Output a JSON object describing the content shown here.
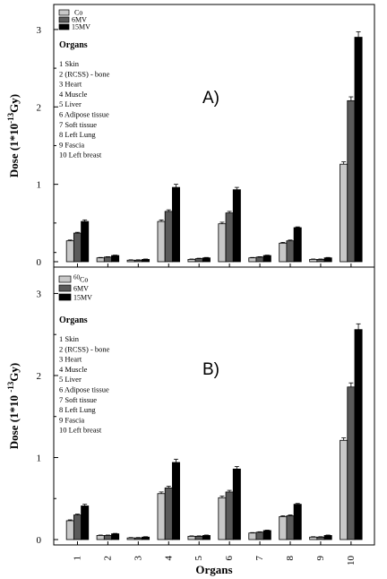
{
  "colors": {
    "series": [
      "#c8c8c8",
      "#5a5a5a",
      "#000000"
    ],
    "axis": "#000000",
    "background": "#ffffff"
  },
  "chart_data": [
    {
      "type": "bar",
      "panel_label": "A)",
      "ylabel_parts": [
        "Dose (1*10",
        "-13",
        "Gy)"
      ],
      "xlabel": "",
      "ylim": [
        0,
        3.3
      ],
      "yticks": [
        "0",
        "1",
        "2",
        "3"
      ],
      "categories": [
        "1",
        "2",
        "3",
        "4",
        "5",
        "6",
        "7",
        "8",
        "9",
        "10"
      ],
      "show_x_tick_labels": false,
      "legend_placement": "top-left",
      "legend": [
        "60Co",
        "6MV",
        "15MV"
      ],
      "legend_texts": [
        [
          "",
          "Co"
        ],
        [
          "6MV",
          ""
        ],
        [
          "15MV",
          ""
        ]
      ],
      "organs_title": "Organs",
      "organs_list": [
        "1 Skin",
        "2 (RCSS) - bone",
        "3 Heart",
        "4 Muscle",
        "5 Liver",
        "6 Adipose tissue",
        "7 Soft tissue",
        "8 Left Lung",
        "9 Fascia",
        "10 Left breast"
      ],
      "series": [
        {
          "name": "60Co",
          "values": [
            0.27,
            0.05,
            0.02,
            0.52,
            0.03,
            0.49,
            0.05,
            0.24,
            0.03,
            1.26
          ],
          "errors": [
            0.01,
            0.005,
            0.005,
            0.02,
            0.005,
            0.02,
            0.005,
            0.01,
            0.005,
            0.03
          ]
        },
        {
          "name": "6MV",
          "values": [
            0.37,
            0.06,
            0.02,
            0.65,
            0.04,
            0.63,
            0.06,
            0.27,
            0.03,
            2.08
          ],
          "errors": [
            0.01,
            0.005,
            0.005,
            0.02,
            0.005,
            0.02,
            0.005,
            0.01,
            0.005,
            0.05
          ]
        },
        {
          "name": "15MV",
          "values": [
            0.52,
            0.08,
            0.03,
            0.96,
            0.05,
            0.93,
            0.08,
            0.44,
            0.05,
            2.9
          ],
          "errors": [
            0.02,
            0.005,
            0.005,
            0.04,
            0.005,
            0.03,
            0.005,
            0.01,
            0.005,
            0.07
          ]
        }
      ]
    },
    {
      "type": "bar",
      "panel_label": "B)",
      "ylabel_parts": [
        "Dose (1*10 ",
        "-13",
        "Gy)"
      ],
      "xlabel": "Organs",
      "ylim": [
        0,
        3.3
      ],
      "yticks": [
        "0",
        "1",
        "2",
        "3"
      ],
      "categories": [
        "1",
        "2",
        "3",
        "4",
        "5",
        "6",
        "7",
        "8",
        "9",
        "10"
      ],
      "show_x_tick_labels": true,
      "legend_placement": "top-left",
      "legend": [
        "60Co",
        "6MV",
        "15MV"
      ],
      "legend_texts": [
        [
          "60",
          "Co"
        ],
        [
          "6MV",
          ""
        ],
        [
          "15MV",
          ""
        ]
      ],
      "organs_title": "Organs",
      "organs_list": [
        "1 Skin",
        "2 (RCSS) - bone",
        "3 Heart",
        "4 Muscle",
        "5 Liver",
        "6 Adipose tissue",
        "7 Soft tissue",
        "8 Left Lung",
        "9 Fascia",
        "10 Left breast"
      ],
      "series": [
        {
          "name": "60Co",
          "values": [
            0.23,
            0.05,
            0.02,
            0.56,
            0.04,
            0.51,
            0.08,
            0.28,
            0.03,
            1.21
          ],
          "errors": [
            0.01,
            0.005,
            0.005,
            0.02,
            0.005,
            0.02,
            0.005,
            0.01,
            0.005,
            0.03
          ]
        },
        {
          "name": "6MV",
          "values": [
            0.3,
            0.05,
            0.02,
            0.63,
            0.04,
            0.58,
            0.09,
            0.29,
            0.03,
            1.86
          ],
          "errors": [
            0.01,
            0.005,
            0.005,
            0.02,
            0.005,
            0.02,
            0.005,
            0.01,
            0.005,
            0.05
          ]
        },
        {
          "name": "15MV",
          "values": [
            0.41,
            0.07,
            0.03,
            0.94,
            0.05,
            0.86,
            0.11,
            0.43,
            0.05,
            2.56
          ],
          "errors": [
            0.02,
            0.005,
            0.005,
            0.04,
            0.005,
            0.03,
            0.005,
            0.01,
            0.005,
            0.07
          ]
        }
      ]
    }
  ]
}
